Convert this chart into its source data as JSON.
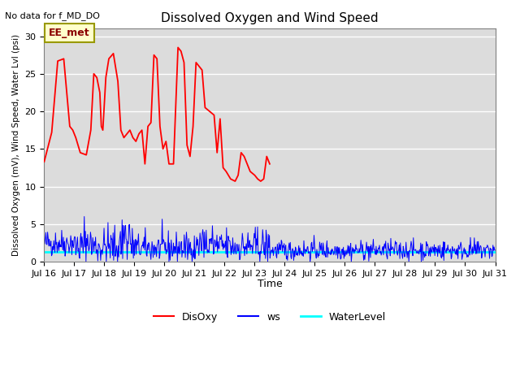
{
  "title": "Dissolved Oxygen and Wind Speed",
  "subtitle": "No data for f_MD_DO",
  "ylabel": "Dissolved Oxygen (mV), Wind Speed, Water Lvl (psi)",
  "xlabel": "Time",
  "annotation_label": "EE_met",
  "background_color": "#dcdcdc",
  "ylim": [
    0,
    31
  ],
  "yticks": [
    0,
    5,
    10,
    15,
    20,
    25,
    30
  ],
  "xtick_labels": [
    "Jul 16",
    "Jul 17",
    "Jul 18",
    "Jul 19",
    "Jul 20",
    "Jul 21",
    "Jul 22",
    "Jul 23",
    "Jul 24",
    "Jul 25",
    "Jul 26",
    "Jul 27",
    "Jul 28",
    "Jul 29",
    "Jul 30",
    "Jul 31"
  ],
  "disoxy_x": [
    0.0,
    0.25,
    0.45,
    0.65,
    0.85,
    0.95,
    1.05,
    1.2,
    1.4,
    1.55,
    1.65,
    1.75,
    1.85,
    1.9,
    1.95,
    2.05,
    2.15,
    2.3,
    2.45,
    2.55,
    2.65,
    2.75,
    2.85,
    2.95,
    3.05,
    3.15,
    3.25,
    3.35,
    3.45,
    3.55,
    3.65,
    3.75,
    3.85,
    3.95,
    4.05,
    4.15,
    4.3,
    4.45,
    4.55,
    4.65,
    4.75,
    4.85,
    4.95,
    5.05,
    5.15,
    5.25,
    5.35,
    5.5,
    5.65,
    5.75,
    5.85,
    5.95,
    6.05,
    6.2,
    6.35,
    6.45,
    6.55,
    6.65,
    6.75,
    6.85,
    7.0,
    7.1,
    7.2,
    7.3,
    7.4,
    7.5
  ],
  "disoxy_y": [
    13.3,
    17.2,
    26.7,
    27.0,
    18.0,
    17.5,
    16.5,
    14.5,
    14.2,
    17.5,
    25.0,
    24.5,
    22.5,
    18.0,
    17.5,
    24.5,
    27.0,
    27.7,
    24.0,
    17.5,
    16.5,
    17.0,
    17.5,
    16.5,
    16.0,
    17.0,
    17.5,
    13.0,
    18.0,
    18.5,
    27.5,
    27.0,
    18.0,
    15.0,
    16.0,
    13.0,
    13.0,
    28.5,
    28.0,
    26.5,
    15.5,
    14.0,
    18.0,
    26.5,
    26.0,
    25.5,
    20.5,
    20.0,
    19.5,
    14.5,
    19.0,
    12.5,
    12.0,
    11.0,
    10.7,
    11.5,
    14.5,
    14.0,
    13.0,
    12.0,
    11.5,
    11.0,
    10.7,
    11.0,
    14.0,
    13.0
  ],
  "water_level_value": 1.3,
  "total_days": 15.0,
  "num_ws_points": 800,
  "ws_noise_seed": 42
}
